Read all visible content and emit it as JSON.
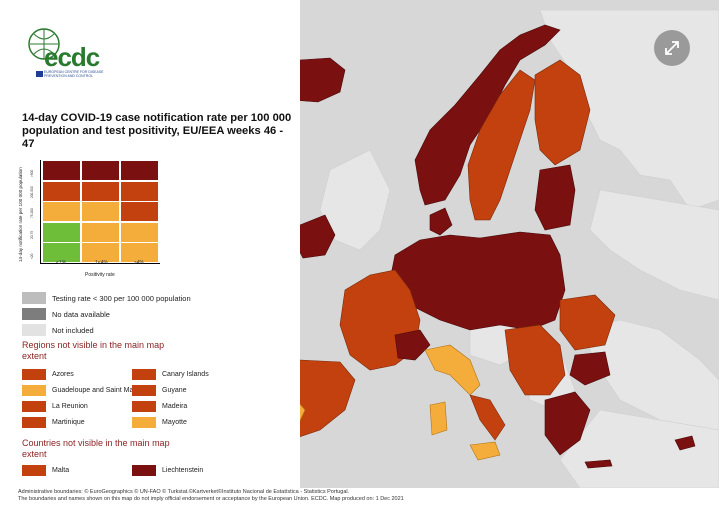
{
  "map": {
    "title": "14-day COVID-19 case notification rate per 100 000 population and test positivity, EU/EEA weeks 46 - 47",
    "logo_text": "ecdc",
    "logo_subtext": "EUROPEAN CENTRE FOR DISEASE PREVENTION AND CONTROL",
    "matrix": {
      "y_axis_label": "14-day notification rate per 100 000 population",
      "x_axis_label": "Positivity rate",
      "row_ticks": [
        ">500",
        "200-500",
        "75-200",
        "20-75",
        "<20"
      ],
      "col_ticks": [
        "<1%",
        "1<4%",
        "≥4%"
      ],
      "rows": [
        [
          "#7a1010",
          "#7a1010",
          "#7a1010"
        ],
        [
          "#c2410f",
          "#c2410f",
          "#c2410f"
        ],
        [
          "#f4ad3a",
          "#f4ad3a",
          "#c2410f"
        ],
        [
          "#6fbe3a",
          "#f4ad3a",
          "#f4ad3a"
        ],
        [
          "#6fbe3a",
          "#f4ad3a",
          "#f4ad3a"
        ]
      ]
    },
    "legend": [
      {
        "label": "Testing rate < 300 per 100 000 population",
        "color": "#bdbdbd"
      },
      {
        "label": "No data available",
        "color": "#7d7d7d"
      },
      {
        "label": "Not included",
        "color": "#e2e2e2"
      }
    ],
    "regions_heading": "Regions not visible in the main map extent",
    "regions": [
      {
        "label": "Azores",
        "color": "#c2410f"
      },
      {
        "label": "Canary Islands",
        "color": "#c2410f"
      },
      {
        "label": "Guadeloupe and Saint Martin",
        "color": "#f4ad3a"
      },
      {
        "label": "Guyane",
        "color": "#c2410f"
      },
      {
        "label": "La Reunion",
        "color": "#c2410f"
      },
      {
        "label": "Madeira",
        "color": "#c2410f"
      },
      {
        "label": "Martinique",
        "color": "#c2410f"
      },
      {
        "label": "Mayotte",
        "color": "#f4ad3a"
      }
    ],
    "countries_heading": "Countries not visible in the main map extent",
    "countries": [
      {
        "label": "Malta",
        "color": "#c2410f"
      },
      {
        "label": "Liechtenstein",
        "color": "#7a1010"
      }
    ],
    "footer_line1": "Administrative boundaries: © EuroGeographics © UN-FAO © Turkstat.©Kartverket©Instituto Nacional de Estatística - Statistics Portugal.",
    "footer_line2": "The boundaries and names shown on this map do not imply official endorsement or acceptance by the European Union. ECDC. Map produced on: 1 Dec 2021",
    "colors": {
      "dark_red": "#7a1010",
      "red": "#c2410f",
      "orange": "#f4ad3a",
      "green": "#6fbe3a",
      "not_included": "#e2e2e2",
      "background": "#d7d7d7"
    },
    "expand_icon": "expand-arrows-icon"
  }
}
